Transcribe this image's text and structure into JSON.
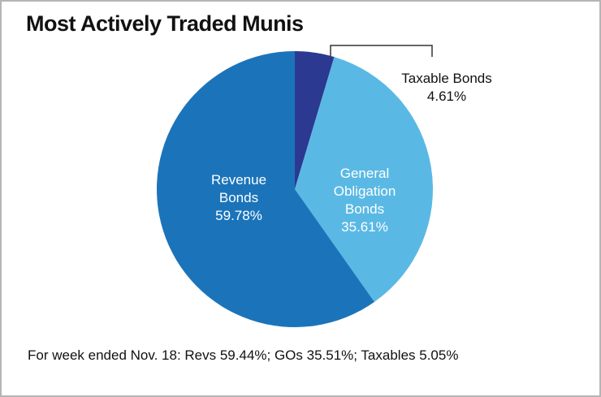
{
  "chart_data": {
    "type": "pie",
    "title": "Most Actively Traded Munis",
    "categories": [
      "Taxable Bonds",
      "General Obligation Bonds",
      "Revenue Bonds"
    ],
    "values": [
      4.61,
      35.61,
      59.78
    ],
    "value_labels": [
      "4.61%",
      "35.61%",
      "59.78%"
    ],
    "colors": [
      "#2b3990",
      "#5ab9e4",
      "#1b74ba"
    ],
    "footnote": "For week ended Nov. 18: Revs 59.44%; GOs 35.51%; Taxables 5.05%"
  }
}
